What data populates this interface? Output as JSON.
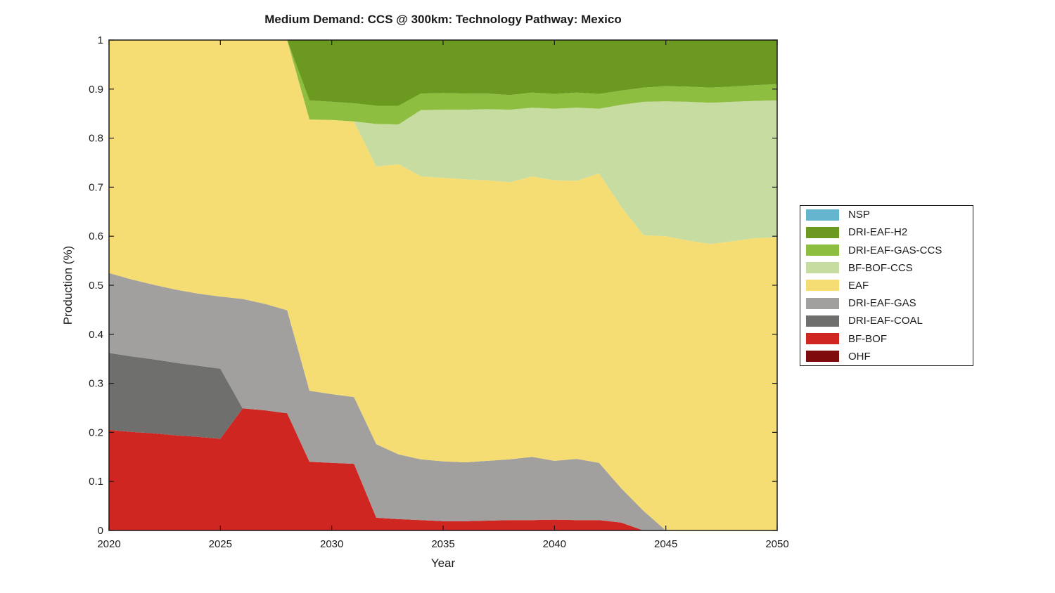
{
  "figure": {
    "title": "Medium Demand: CCS @ 300km: Technology Pathway: Mexico",
    "xlabel": "Year",
    "ylabel": "Production (%)"
  },
  "chart_data": {
    "type": "area",
    "stacked": true,
    "title": "Medium Demand: CCS @ 300km: Technology Pathway: Mexico",
    "xlabel": "Year",
    "ylabel": "Production (%)",
    "xlim": [
      2020,
      2050
    ],
    "ylim": [
      0,
      1
    ],
    "xticks": [
      2020,
      2025,
      2030,
      2035,
      2040,
      2045,
      2050
    ],
    "yticks": [
      0,
      0.1,
      0.2,
      0.3,
      0.4,
      0.5,
      0.6,
      0.7,
      0.8,
      0.9,
      1
    ],
    "grid": false,
    "legend_position": "right-outside",
    "legend_order_top_to_bottom": [
      "NSP",
      "DRI-EAF-H2",
      "DRI-EAF-GAS-CCS",
      "BF-BOF-CCS",
      "EAF",
      "DRI-EAF-GAS",
      "DRI-EAF-COAL",
      "BF-BOF",
      "OHF"
    ],
    "x": [
      2020,
      2021,
      2022,
      2023,
      2024,
      2025,
      2026,
      2027,
      2028,
      2029,
      2030,
      2031,
      2032,
      2033,
      2034,
      2035,
      2036,
      2037,
      2038,
      2039,
      2040,
      2041,
      2042,
      2043,
      2044,
      2045,
      2046,
      2047,
      2048,
      2049,
      2050
    ],
    "series": [
      {
        "name": "OHF",
        "color": "#7F0C0C",
        "values": [
          0,
          0,
          0,
          0,
          0,
          0,
          0,
          0,
          0,
          0,
          0,
          0,
          0,
          0,
          0,
          0,
          0,
          0,
          0,
          0,
          0,
          0,
          0,
          0,
          0,
          0,
          0,
          0,
          0,
          0,
          0
        ]
      },
      {
        "name": "BF-BOF",
        "color": "#CF2621",
        "values": [
          0.205,
          0.201,
          0.198,
          0.194,
          0.191,
          0.187,
          0.249,
          0.245,
          0.239,
          0.14,
          0.138,
          0.136,
          0.026,
          0.023,
          0.021,
          0.019,
          0.019,
          0.02,
          0.021,
          0.021,
          0.022,
          0.021,
          0.021,
          0.016,
          0,
          0,
          0,
          0,
          0,
          0,
          0
        ]
      },
      {
        "name": "DRI-EAF-COAL",
        "color": "#6F6F6D",
        "values": [
          0.157,
          0.154,
          0.151,
          0.148,
          0.145,
          0.143,
          0,
          0,
          0,
          0,
          0,
          0,
          0,
          0,
          0,
          0,
          0,
          0,
          0,
          0,
          0,
          0,
          0,
          0,
          0,
          0,
          0,
          0,
          0,
          0,
          0
        ]
      },
      {
        "name": "DRI-EAF-GAS",
        "color": "#A1A09E",
        "values": [
          0.163,
          0.157,
          0.152,
          0.149,
          0.147,
          0.147,
          0.223,
          0.217,
          0.21,
          0.145,
          0.14,
          0.136,
          0.15,
          0.132,
          0.124,
          0.122,
          0.12,
          0.122,
          0.124,
          0.129,
          0.12,
          0.125,
          0.117,
          0.07,
          0.04,
          0,
          0,
          0,
          0,
          0,
          0
        ]
      },
      {
        "name": "EAF",
        "color": "#F6DD73",
        "values": [
          0.475,
          0.488,
          0.499,
          0.509,
          0.517,
          0.523,
          0.528,
          0.538,
          0.551,
          0.553,
          0.559,
          0.562,
          0.566,
          0.592,
          0.577,
          0.578,
          0.577,
          0.572,
          0.565,
          0.572,
          0.572,
          0.567,
          0.59,
          0.574,
          0.562,
          0.6,
          0.591,
          0.584,
          0.59,
          0.596,
          0.598
        ]
      },
      {
        "name": "BF-BOF-CCS",
        "color": "#C7DCA0",
        "values": [
          0,
          0,
          0,
          0,
          0,
          0,
          0,
          0,
          0,
          0,
          0,
          0,
          0.087,
          0.081,
          0.135,
          0.139,
          0.142,
          0.145,
          0.148,
          0.14,
          0.146,
          0.149,
          0.132,
          0.208,
          0.272,
          0.275,
          0.283,
          0.288,
          0.284,
          0.28,
          0.279
        ]
      },
      {
        "name": "DRI-EAF-GAS-CCS",
        "color": "#8DBE40",
        "values": [
          0,
          0,
          0,
          0,
          0,
          0,
          0,
          0,
          0,
          0.039,
          0.037,
          0.037,
          0.037,
          0.038,
          0.034,
          0.034,
          0.033,
          0.032,
          0.03,
          0.031,
          0.03,
          0.031,
          0.03,
          0.029,
          0.029,
          0.031,
          0.031,
          0.031,
          0.031,
          0.032,
          0.033
        ]
      },
      {
        "name": "DRI-EAF-H2",
        "color": "#6C9A21",
        "values": [
          0,
          0,
          0,
          0,
          0,
          0,
          0,
          0,
          0,
          0.123,
          0.126,
          0.129,
          0.134,
          0.134,
          0.109,
          0.108,
          0.109,
          0.109,
          0.112,
          0.107,
          0.11,
          0.107,
          0.11,
          0.103,
          0.097,
          0.094,
          0.095,
          0.097,
          0.095,
          0.092,
          0.09
        ]
      },
      {
        "name": "NSP",
        "color": "#63B5CE",
        "values": [
          0,
          0,
          0,
          0,
          0,
          0,
          0,
          0,
          0,
          0,
          0,
          0,
          0,
          0,
          0,
          0,
          0,
          0,
          0,
          0,
          0,
          0,
          0,
          0,
          0,
          0,
          0,
          0,
          0,
          0,
          0
        ]
      }
    ]
  }
}
